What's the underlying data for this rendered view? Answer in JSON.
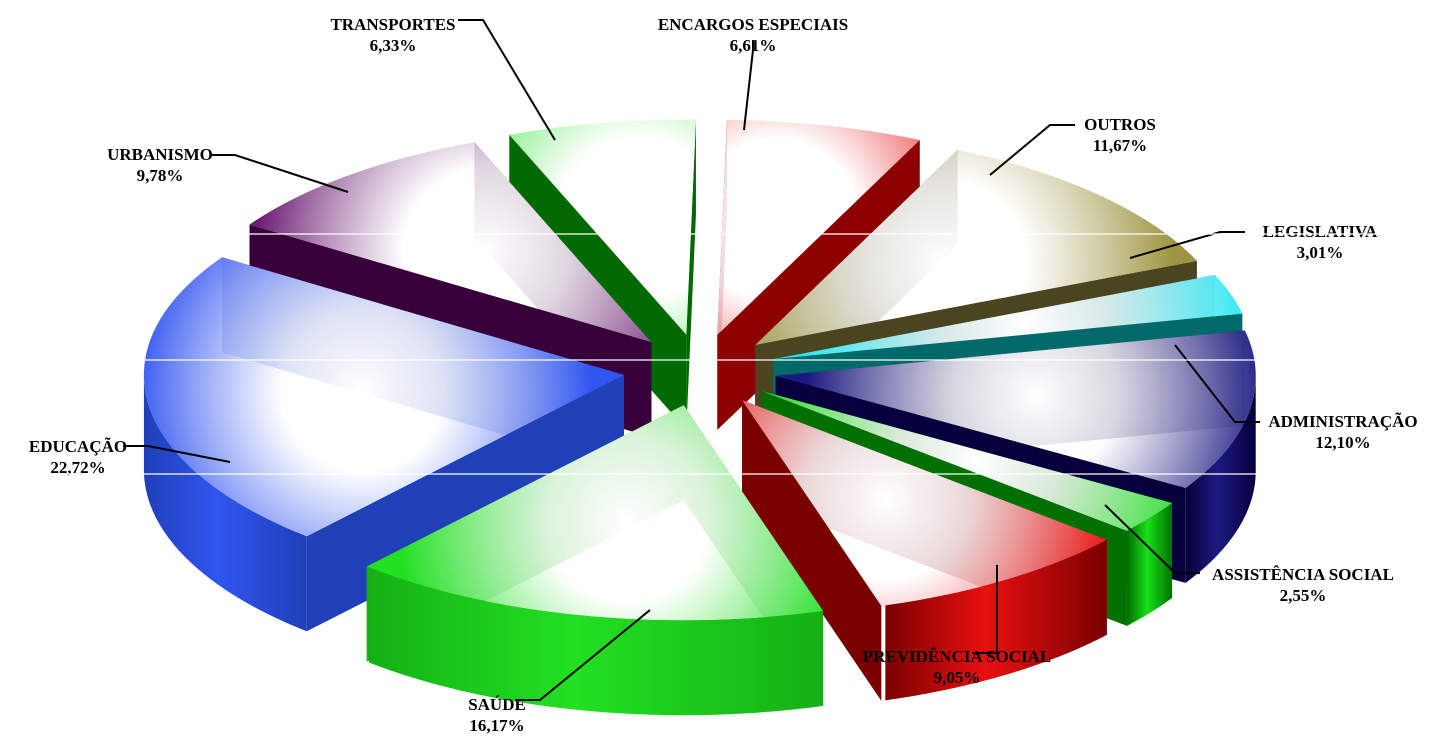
{
  "chart_data": {
    "type": "pie",
    "title": "",
    "slices": [
      {
        "label": "ENCARGOS ESPECIAIS",
        "value_text": "6,61%",
        "value": 6.61,
        "color": "#e00000",
        "side": "#8c0000"
      },
      {
        "label": "OUTROS",
        "value_text": "11,67%",
        "value": 11.67,
        "color": "#9c9440",
        "side": "#4a4520"
      },
      {
        "label": "LEGISLATIVA",
        "value_text": "3,01%",
        "value": 3.01,
        "color": "#22e6f2",
        "side": "#006a6a"
      },
      {
        "label": "ADMINISTRAÇÃO",
        "value_text": "12,10%",
        "value": 12.1,
        "color": "#1c1a80",
        "side": "#06003c"
      },
      {
        "label": "ASSISTÊNCIA SOCIAL",
        "value_text": "2,55%",
        "value": 2.55,
        "color": "#18e018",
        "side": "#007000"
      },
      {
        "label": "PREVIDÊNCIA SOCIAL",
        "value_text": "9,05%",
        "value": 9.05,
        "color": "#e81010",
        "side": "#7a0000"
      },
      {
        "label": "SAÚDE",
        "value_text": "16,17%",
        "value": 16.17,
        "color": "#22e022",
        "side": "#15b015"
      },
      {
        "label": "EDUCAÇÃO",
        "value_text": "22,72%",
        "value": 22.72,
        "color": "#3055f0",
        "side": "#2040b8"
      },
      {
        "label": "URBANISMO",
        "value_text": "9,78%",
        "value": 9.78,
        "color": "#6a1a70",
        "side": "#38003a"
      },
      {
        "label": "TRANSPORTES",
        "value_text": "6,33%",
        "value": 6.33,
        "color": "#22e022",
        "side": "#006a00"
      }
    ],
    "legend": "none",
    "grid": false
  }
}
